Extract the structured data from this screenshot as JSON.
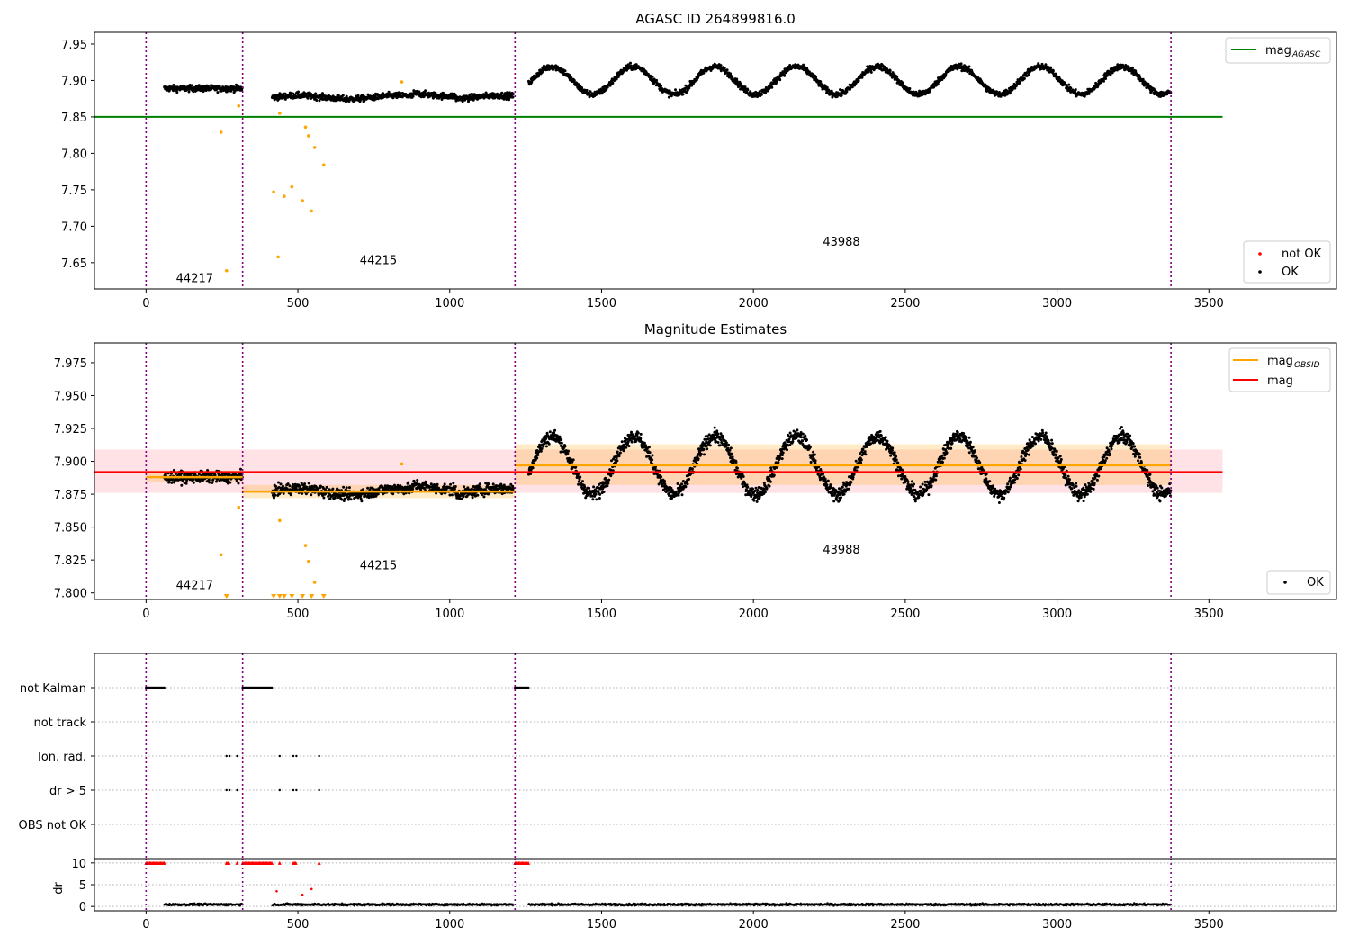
{
  "chart_data": [
    {
      "type": "scatter",
      "title": "AGASC ID 264899816.0",
      "xlim": [
        -170,
        3920
      ],
      "ylim": [
        7.614,
        7.966
      ],
      "xticks": [
        0,
        500,
        1000,
        1500,
        2000,
        2500,
        3000,
        3500
      ],
      "yticks": [
        7.65,
        7.7,
        7.75,
        7.8,
        7.85,
        7.9,
        7.95
      ],
      "ytick_labels": [
        "7.65",
        "7.70",
        "7.75",
        "7.80",
        "7.85",
        "7.90",
        "7.95"
      ],
      "obsid_boundaries": [
        0,
        318,
        1215,
        3375
      ],
      "obsid_labels": [
        {
          "text": "44217",
          "x": 160,
          "y": 7.623
        },
        {
          "text": "44215",
          "x": 765,
          "y": 7.648
        },
        {
          "text": "43988",
          "x": 2290,
          "y": 7.673
        }
      ],
      "hlines": [
        {
          "name": "mag_AGASC",
          "color": "#008000",
          "y": 7.85,
          "x": [
            -170,
            3545
          ]
        }
      ],
      "legend_upper": {
        "position": "top-right",
        "entries": [
          {
            "label": "mag",
            "sub": "AGASC",
            "color": "#008000"
          }
        ]
      },
      "legend_lower": {
        "position": "bottom-right",
        "entries": [
          {
            "label": "not OK",
            "color": "#ff0000"
          },
          {
            "label": "OK",
            "color": "#000000"
          }
        ]
      },
      "series": [
        {
          "name": "OK",
          "color": "#000000",
          "segments": [
            {
              "x": [
                60,
                318
              ],
              "base": 7.889,
              "noise": 0.004
            },
            {
              "x": [
                415,
                1210
              ],
              "base": 7.877,
              "noise": 0.004
            },
            {
              "x": [
                1260,
                3375
              ],
              "base": 7.9,
              "noise": 0.004
            }
          ]
        },
        {
          "name": "not OK (faint points)",
          "color": "#ffa500",
          "points": [
            [
              247,
              7.829
            ],
            [
              265,
              7.639
            ],
            [
              305,
              7.865
            ],
            [
              420,
              7.747
            ],
            [
              435,
              7.658
            ],
            [
              440,
              7.855
            ],
            [
              455,
              7.741
            ],
            [
              480,
              7.754
            ],
            [
              515,
              7.735
            ],
            [
              525,
              7.836
            ],
            [
              535,
              7.824
            ],
            [
              545,
              7.721
            ],
            [
              555,
              7.808
            ],
            [
              585,
              7.784
            ],
            [
              842,
              7.898
            ]
          ]
        }
      ]
    },
    {
      "type": "scatter",
      "title": "Magnitude Estimates",
      "xlim": [
        -170,
        3920
      ],
      "ylim": [
        7.795,
        7.99
      ],
      "xticks": [
        0,
        500,
        1000,
        1500,
        2000,
        2500,
        3000,
        3500
      ],
      "yticks": [
        7.8,
        7.825,
        7.85,
        7.875,
        7.9,
        7.925,
        7.95,
        7.975
      ],
      "ytick_labels": [
        "7.800",
        "7.825",
        "7.850",
        "7.875",
        "7.900",
        "7.925",
        "7.950",
        "7.975"
      ],
      "obsid_boundaries": [
        0,
        318,
        1215,
        3375
      ],
      "obsid_labels": [
        {
          "text": "44217",
          "x": 160,
          "y": 7.803
        },
        {
          "text": "44215",
          "x": 765,
          "y": 7.818
        },
        {
          "text": "43988",
          "x": 2290,
          "y": 7.83
        }
      ],
      "mag_band": {
        "y": [
          7.876,
          7.909
        ],
        "x": [
          -170,
          3545
        ],
        "color": "#ffb6c1"
      },
      "mag_line": {
        "name": "mag",
        "color": "#ff0000",
        "y": 7.892,
        "x": [
          -170,
          3545
        ]
      },
      "mag_obsid": [
        {
          "x": [
            0,
            318
          ],
          "y": 7.888,
          "band": [
            7.884,
            7.893
          ]
        },
        {
          "x": [
            318,
            1215
          ],
          "y": 7.877,
          "band": [
            7.872,
            7.882
          ]
        },
        {
          "x": [
            1215,
            3375
          ],
          "y": 7.897,
          "band": [
            7.882,
            7.913
          ]
        }
      ],
      "mag_obsid_color": "#ffa500",
      "legend_upper": {
        "position": "top-right",
        "entries": [
          {
            "label": "mag",
            "sub": "OBSID",
            "color": "#ffa500"
          },
          {
            "label": "mag",
            "sub": "",
            "color": "#ff0000"
          }
        ]
      },
      "legend_lower": {
        "position": "bottom-right",
        "entries": [
          {
            "label": "OK",
            "color": "#000000"
          }
        ]
      },
      "series": [
        {
          "name": "OK",
          "color": "#000000",
          "segments": [
            {
              "x": [
                60,
                318
              ],
              "base": 7.888,
              "noise": 0.004
            },
            {
              "x": [
                415,
                1210
              ],
              "base": 7.877,
              "noise": 0.004
            },
            {
              "x": [
                1260,
                3375
              ],
              "base": 7.897,
              "noise": 0.005
            }
          ]
        },
        {
          "name": "orange points",
          "color": "#ffa500",
          "points": [
            [
              247,
              7.829
            ],
            [
              305,
              7.865
            ],
            [
              440,
              7.855
            ],
            [
              525,
              7.836
            ],
            [
              535,
              7.824
            ],
            [
              555,
              7.808
            ],
            [
              842,
              7.898
            ]
          ]
        },
        {
          "name": "below-limit markers",
          "color": "#ffa500",
          "x": [
            265,
            420,
            440,
            455,
            480,
            515,
            545,
            585
          ]
        }
      ]
    },
    {
      "type": "scatter",
      "title": "",
      "xlim": [
        -170,
        3920
      ],
      "obsid_boundaries": [
        0,
        318,
        1215,
        3375
      ],
      "flag_rows": [
        "not Kalman",
        "not track",
        "Ion. rad.",
        "dr > 5",
        "OBS not OK"
      ],
      "flag_points": {
        "not Kalman": [
          [
            0,
            60
          ],
          [
            318,
            415
          ],
          [
            1215,
            1260
          ]
        ],
        "not track": [],
        "Ion. rad.": [
          265,
          275,
          300,
          440,
          485,
          495,
          570
        ],
        "dr > 5": [
          265,
          275,
          300,
          440,
          485,
          495,
          570
        ],
        "OBS not OK": []
      },
      "dr_panel": {
        "ylim": [
          -1,
          11
        ],
        "yticks": [
          0,
          5,
          10
        ],
        "ytick_labels": [
          "0",
          "5",
          "10"
        ],
        "ylabel": "dr",
        "xticks": [
          0,
          500,
          1000,
          1500,
          2000,
          2500,
          3000,
          3500
        ],
        "clipped_red": [
          [
            0,
            60
          ],
          [
            265,
            275
          ],
          [
            300,
            300
          ],
          [
            318,
            415
          ],
          [
            440,
            440
          ],
          [
            485,
            495
          ],
          [
            570,
            570
          ],
          [
            1215,
            1260
          ]
        ],
        "outliers": [
          [
            430,
            3.5
          ],
          [
            545,
            4.0
          ],
          [
            515,
            2.7
          ]
        ],
        "ok_segments": [
          [
            60,
            318
          ],
          [
            415,
            1210
          ],
          [
            1260,
            3375
          ]
        ]
      }
    }
  ]
}
